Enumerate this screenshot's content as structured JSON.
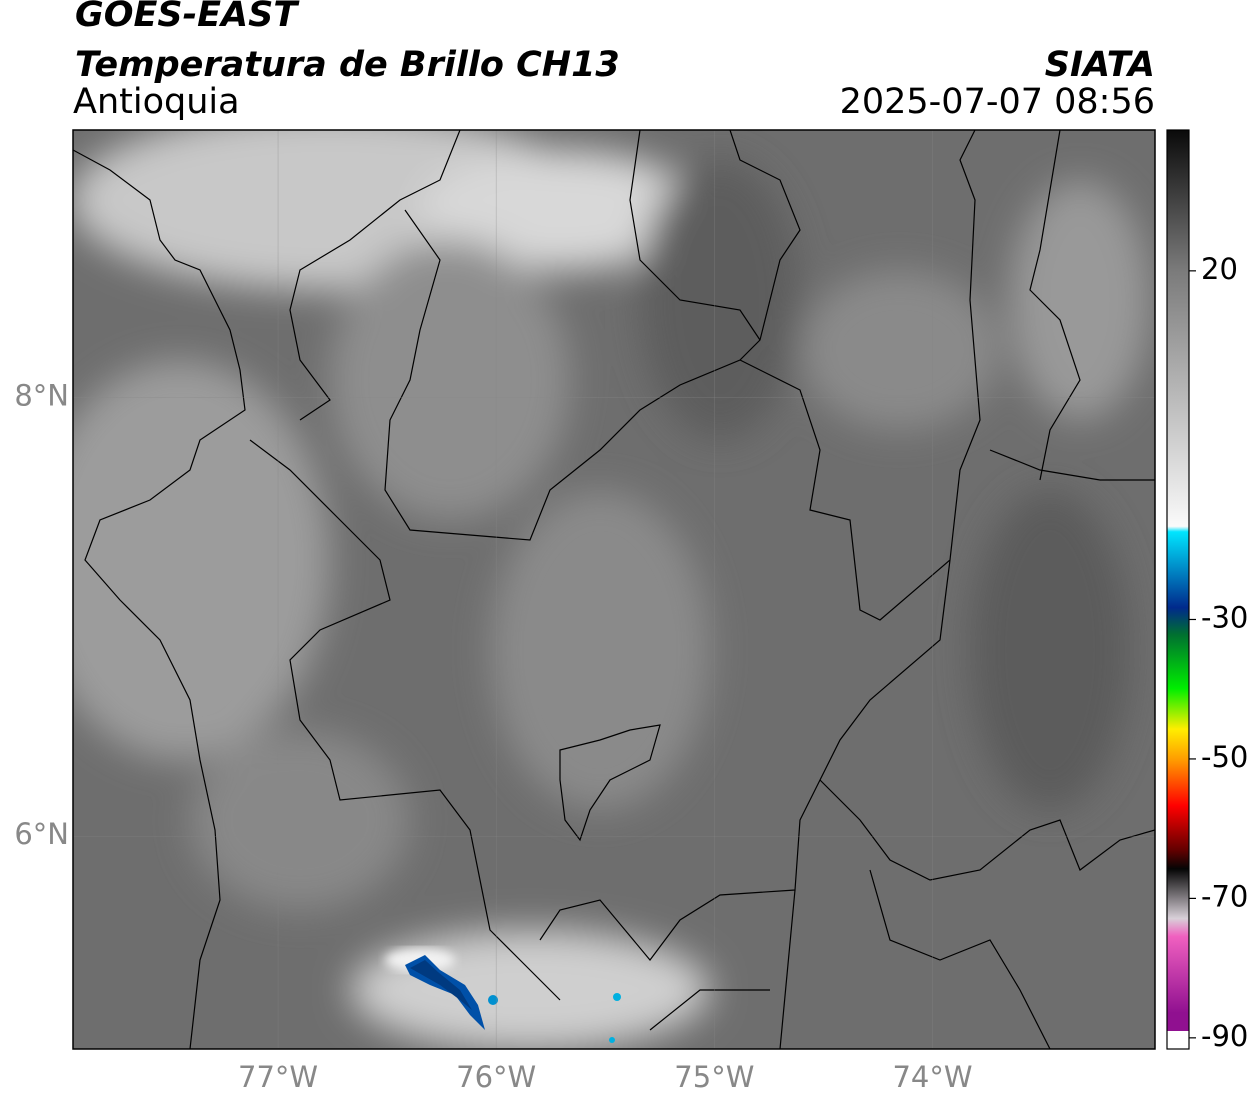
{
  "header": {
    "title": "GOES-EAST",
    "subtitle": "Temperatura de Brillo CH13",
    "region": "Antioquia",
    "source": "SIATA",
    "datetime": "2025-07-07 08:56"
  },
  "map": {
    "lonlim": [
      -77.94,
      -72.98
    ],
    "latlim": [
      5.03,
      9.22
    ],
    "lonticks": [
      {
        "value": -77,
        "label": "77°W"
      },
      {
        "value": -76,
        "label": "76°W"
      },
      {
        "value": -75,
        "label": "75°W"
      },
      {
        "value": -74,
        "label": "74°W"
      }
    ],
    "latticks": [
      {
        "value": 8,
        "label": "8°N"
      },
      {
        "value": 6,
        "label": "6°N"
      }
    ]
  },
  "colorbar": {
    "range": [
      -91.6,
      40.2
    ],
    "ticks": [
      20,
      -30,
      -50,
      -70,
      -90
    ]
  }
}
